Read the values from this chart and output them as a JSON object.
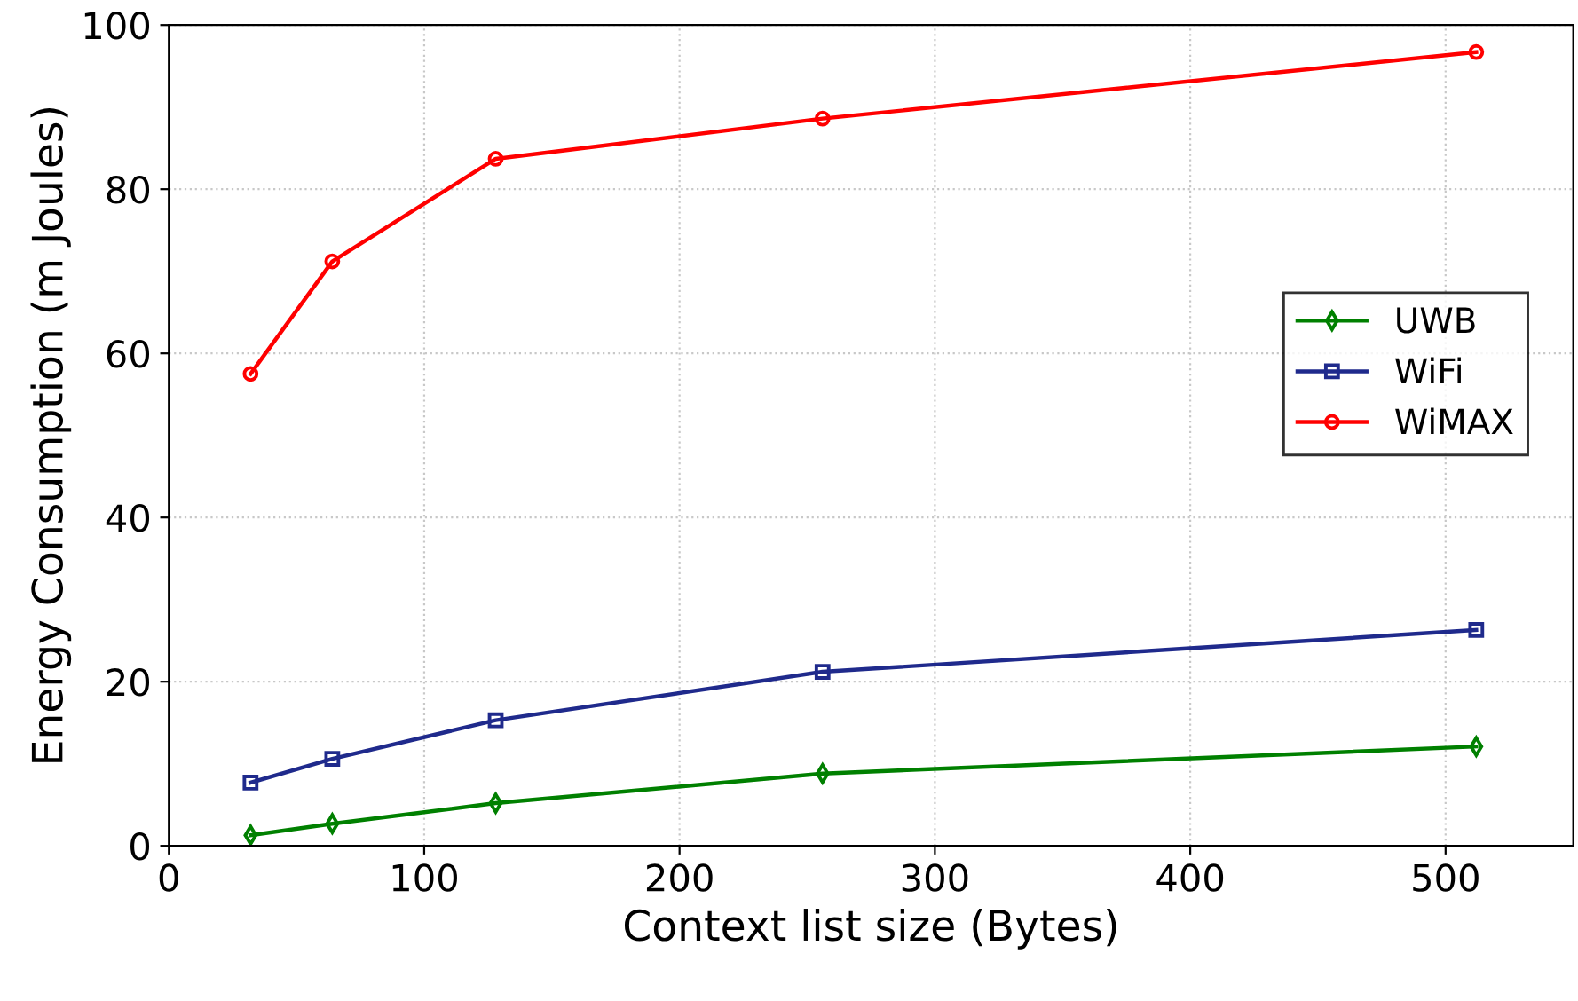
{
  "chart_data": {
    "type": "line",
    "xlabel": "Context list size (Bytes)",
    "ylabel": "Energy Consumption (m Joules)",
    "x": [
      32,
      64,
      128,
      256,
      512
    ],
    "series": [
      {
        "name": "UWB",
        "color": "#008000",
        "marker": "diamond",
        "values": [
          1.3,
          2.7,
          5.2,
          8.8,
          12.1
        ]
      },
      {
        "name": "WiFi",
        "color": "#1f2a8c",
        "marker": "square",
        "values": [
          7.7,
          10.6,
          15.3,
          21.2,
          26.3
        ]
      },
      {
        "name": "WiMAX",
        "color": "#ff0000",
        "marker": "circle",
        "values": [
          57.5,
          71.2,
          83.7,
          88.6,
          96.7
        ]
      }
    ],
    "xlim": [
      0,
      550
    ],
    "xticks": [
      0,
      100,
      200,
      300,
      400,
      500
    ],
    "ylim": [
      0,
      100
    ],
    "yticks": [
      0,
      20,
      40,
      60,
      80,
      100
    ],
    "grid": true,
    "legend": "center right",
    "line_style": "solid"
  }
}
